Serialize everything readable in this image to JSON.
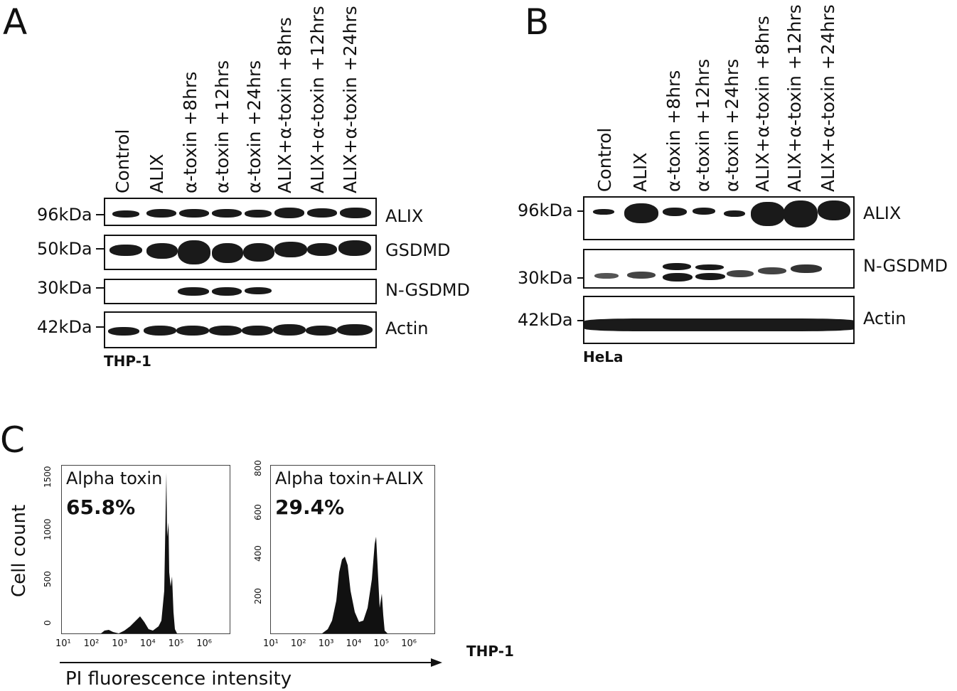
{
  "panels": {
    "a": {
      "letter": "A",
      "lanes": [
        "Control",
        "ALIX",
        "α-toxin +8hrs",
        "α-toxin +12hrs",
        "α-toxin +24hrs",
        "ALIX+α-toxin +8hrs",
        "ALIX+α-toxin +12hrs",
        "ALIX+α-toxin +24hrs"
      ],
      "blots": [
        {
          "mw": "96kDa",
          "protein": "ALIX"
        },
        {
          "mw": "50kDa",
          "protein": "GSDMD"
        },
        {
          "mw": "30kDa",
          "protein": "N-GSDMD"
        },
        {
          "mw": "42kDa",
          "protein": "Actin"
        }
      ],
      "cell_line": "THP-1"
    },
    "b": {
      "letter": "B",
      "lanes": [
        "Control",
        "ALIX",
        "α-toxin +8hrs",
        "α-toxin +12hrs",
        "α-toxin +24hrs",
        "ALIX+α-toxin +8hrs",
        "ALIX+α-toxin +12hrs",
        "ALIX+α-toxin +24hrs"
      ],
      "blots": [
        {
          "mw": "96kDa",
          "protein": "ALIX"
        },
        {
          "mw": "30kDa",
          "protein": "N-GSDMD"
        },
        {
          "mw": "42kDa",
          "protein": "Actin"
        }
      ],
      "cell_line": "HeLa"
    },
    "c": {
      "letter": "C",
      "ylabel": "Cell count",
      "xlabel": "PI fluorescence  intensity",
      "cell_line": "THP-1",
      "x_ticks": [
        "10¹",
        "10²",
        "10³",
        "10⁴",
        "10⁵",
        "10⁶"
      ],
      "hist1": {
        "title": "Alpha toxin",
        "percent": "65.8%",
        "y_ticks": [
          "0",
          "500",
          "1000",
          "1500"
        ]
      },
      "hist2": {
        "title": "Alpha toxin+ALIX",
        "percent": "29.4%",
        "y_ticks": [
          "200",
          "400",
          "600",
          "800"
        ]
      }
    }
  }
}
